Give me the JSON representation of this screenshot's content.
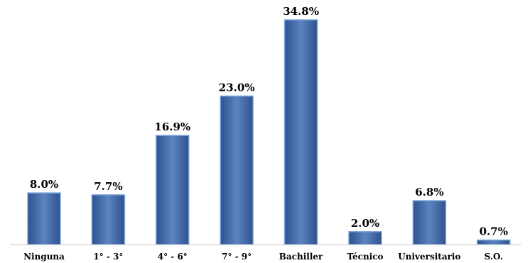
{
  "chart_data": {
    "type": "bar",
    "categories": [
      "Ninguna",
      "1° - 3°",
      "4° - 6°",
      "7° - 9°",
      "Bachiller",
      "Técnico",
      "Universitario",
      "S.O."
    ],
    "values": [
      8.0,
      7.7,
      16.9,
      23.0,
      34.8,
      2.0,
      6.8,
      0.7
    ],
    "data_labels": [
      "8.0%",
      "7.7%",
      "16.9%",
      "23.0%",
      "34.8%",
      "2.0%",
      "6.8%",
      "0.7%"
    ],
    "value_unit": "%",
    "ylim": [
      0,
      36
    ],
    "grid": false,
    "legend": "none",
    "colors": {
      "bar_fill_center": "#5b84c0",
      "bar_fill_edge": "#2f528e",
      "bar_stroke": "#7ea6de",
      "axis": "#c9c9c9",
      "text": "#000000"
    }
  }
}
